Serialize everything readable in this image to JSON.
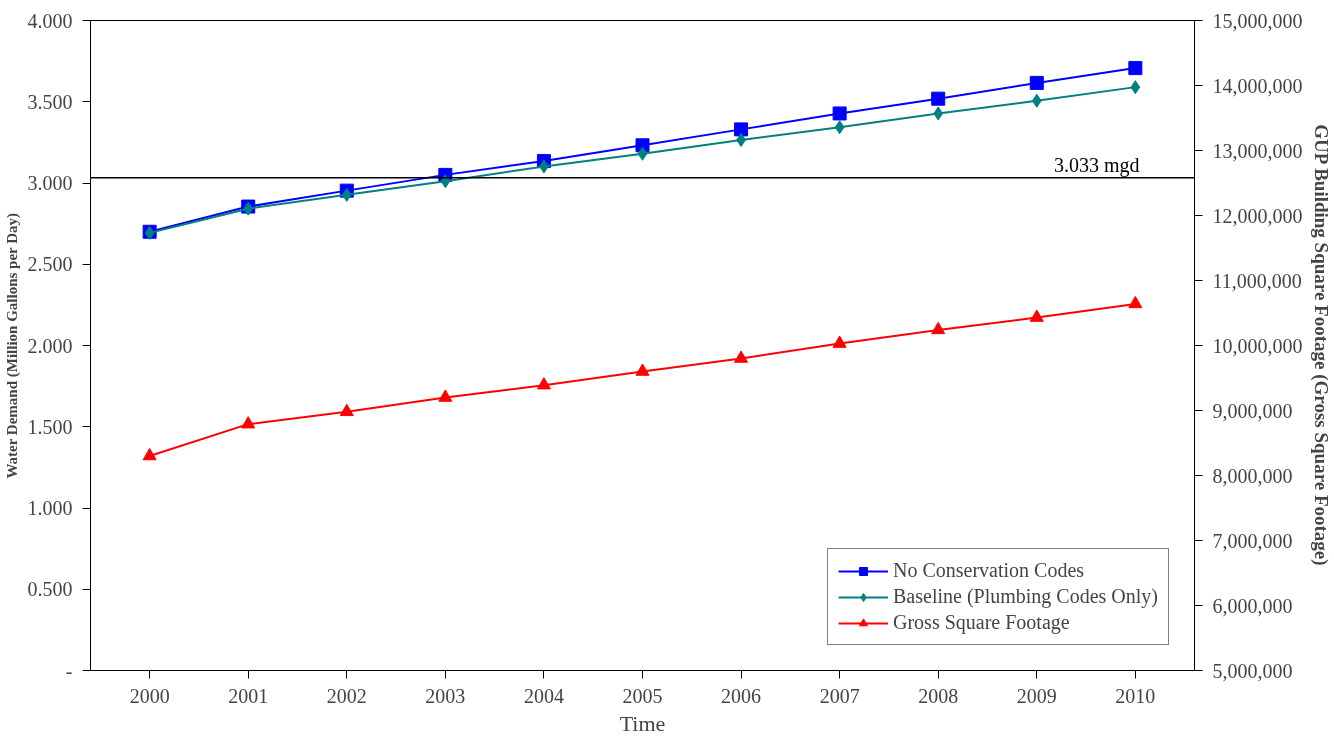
{
  "chart_data": {
    "type": "line",
    "xlabel": "Time",
    "ylabel": "Water Demand (Million Gallons per Day)",
    "y2label": "GUP Building Square Footage (Gross Square Footage)",
    "categories": [
      "2000",
      "2001",
      "2002",
      "2003",
      "2004",
      "2005",
      "2006",
      "2007",
      "2008",
      "2009",
      "2010"
    ],
    "series": [
      {
        "name": "No Conservation Codes",
        "color": "#0000ff",
        "marker": "square",
        "values": [
          2.7,
          2.855,
          2.953,
          3.05,
          3.135,
          3.232,
          3.33,
          3.428,
          3.519,
          3.616,
          3.707
        ]
      },
      {
        "name": "Baseline (Plumbing Codes Only)",
        "color": "#008080",
        "marker": "diamond",
        "values": [
          2.693,
          2.842,
          2.927,
          3.011,
          3.102,
          3.18,
          3.265,
          3.343,
          3.428,
          3.506,
          3.59
        ]
      },
      {
        "name": "Gross Square Footage",
        "color": "#ff0000",
        "marker": "triangle",
        "axis": "y2",
        "values": [
          8300000,
          8790000,
          8980000,
          9200000,
          9390000,
          9600000,
          9800000,
          10030000,
          10240000,
          10430000,
          10640000
        ]
      }
    ],
    "ylim": [
      0,
      4
    ],
    "yticks": [
      {
        "value": 0,
        "label": "-"
      },
      {
        "value": 0.5,
        "label": "0.500"
      },
      {
        "value": 1,
        "label": "1.000"
      },
      {
        "value": 1.5,
        "label": "1.500"
      },
      {
        "value": 2,
        "label": "2.000"
      },
      {
        "value": 2.5,
        "label": "2.500"
      },
      {
        "value": 3,
        "label": "3.000"
      },
      {
        "value": 3.5,
        "label": "3.500"
      },
      {
        "value": 4,
        "label": "4.000"
      }
    ],
    "y2lim": [
      5000000,
      15000000
    ],
    "y2ticks": [
      {
        "value": 5000000,
        "label": "5,000,000"
      },
      {
        "value": 6000000,
        "label": "6,000,000"
      },
      {
        "value": 7000000,
        "label": "7,000,000"
      },
      {
        "value": 8000000,
        "label": "8,000,000"
      },
      {
        "value": 9000000,
        "label": "9,000,000"
      },
      {
        "value": 10000000,
        "label": "10,000,000"
      },
      {
        "value": 11000000,
        "label": "11,000,000"
      },
      {
        "value": 12000000,
        "label": "12,000,000"
      },
      {
        "value": 13000000,
        "label": "13,000,000"
      },
      {
        "value": 14000000,
        "label": "14,000,000"
      },
      {
        "value": 15000000,
        "label": "15,000,000"
      }
    ],
    "ref_lines": [
      {
        "axis": "y",
        "value": 3.033,
        "label": "3.033 mgd",
        "color": "#000000"
      }
    ],
    "legend": "bottom right",
    "grid": false
  }
}
